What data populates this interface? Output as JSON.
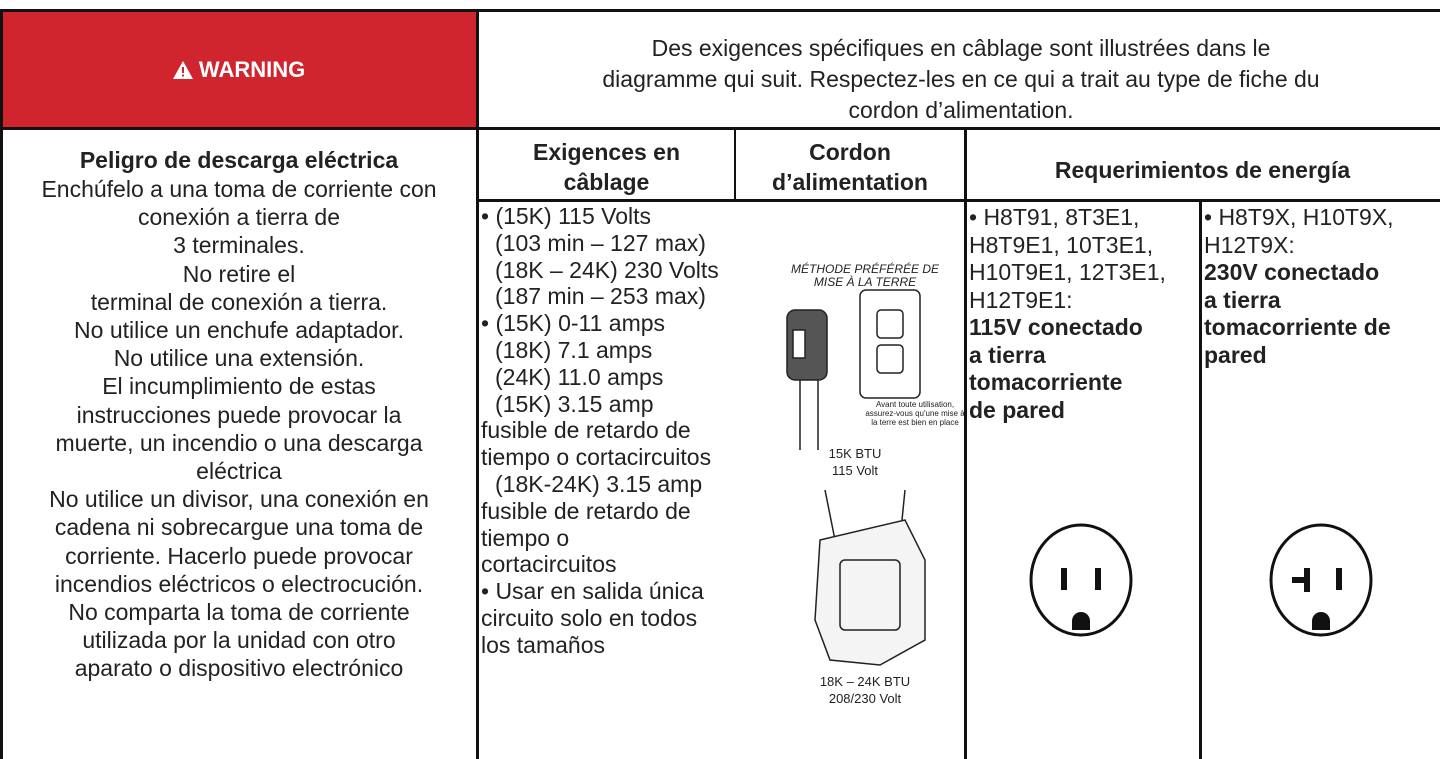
{
  "warning": {
    "label": "WARNING"
  },
  "intro": {
    "lines": [
      "Des exigences spécifiques en câblage sont illustrées dans le",
      "diagramme qui suit. Respectez-les en ce qui a trait au type de fiche du",
      "cordon d’alimentation."
    ]
  },
  "hazard": {
    "title": "Peligro de descarga eléctrica",
    "lines": [
      "Enchúfelo a una toma de corriente con",
      "conexión a tierra de",
      "3 terminales.",
      "No retire el",
      "terminal de conexión a tierra.",
      "No utilice un enchufe adaptador.",
      "No utilice una extensión.",
      "El incumplimiento de estas",
      "instrucciones puede provocar la",
      "muerte, un incendio o una  descarga",
      "eléctrica",
      "No utilice un divisor, una conexión en",
      "cadena ni sobrecargue una toma de",
      "corriente. Hacerlo puede provocar",
      "incendios eléctricos o electrocución.",
      "No comparta la toma de corriente",
      "utilizada por la unidad con otro",
      "aparato o dispositivo electrónico"
    ]
  },
  "wiring": {
    "header": [
      "Exigences en",
      "câblage"
    ],
    "lines": [
      "• (15K) 115 Volts",
      "(103 min – 127 max)",
      "(18K – 24K) 230 Volts",
      "(187 min – 253 max)",
      "• (15K) 0-11 amps",
      "(18K) 7.1 amps",
      "(24K) 11.0 amps",
      "(15K) 3.15 amp",
      "fusible de retardo de",
      "tiempo o cortacircuitos",
      "(18K-24K) 3.15 amp",
      "fusible de retardo de",
      "tiempo o",
      "cortacircuitos",
      "• Usar en salida única",
      "circuito solo en todos",
      "los tamaños"
    ]
  },
  "cord": {
    "header": [
      "Cordon",
      "d’alimentation"
    ],
    "label_top": [
      "MÉTHODE PRÉFÉRÉE DE",
      "MISE À LA TERRE"
    ],
    "note": [
      "Avant toute utilisation,",
      "assurez-vous qu'une mise à",
      "la terre est bien en place"
    ],
    "caption1": [
      "15K BTU",
      "115 Volt"
    ],
    "caption2": [
      "18K – 24K BTU",
      "208/230 Volt"
    ]
  },
  "power": {
    "header": "Requerimientos de energía",
    "col115": {
      "models": [
        "• H8T91, 8T3E1,",
        "H8T9E1, 10T3E1,",
        "H10T9E1, 12T3E1,",
        "H12T9E1:"
      ],
      "spec": [
        "115V conectado",
        "a tierra",
        "tomacorriente",
        "de pared"
      ]
    },
    "col230": {
      "models": [
        "• H8T9X, H10T9X,",
        "H12T9X:"
      ],
      "spec": [
        "230V conectado",
        "a tierra",
        "tomacorriente de",
        "pared"
      ]
    }
  }
}
